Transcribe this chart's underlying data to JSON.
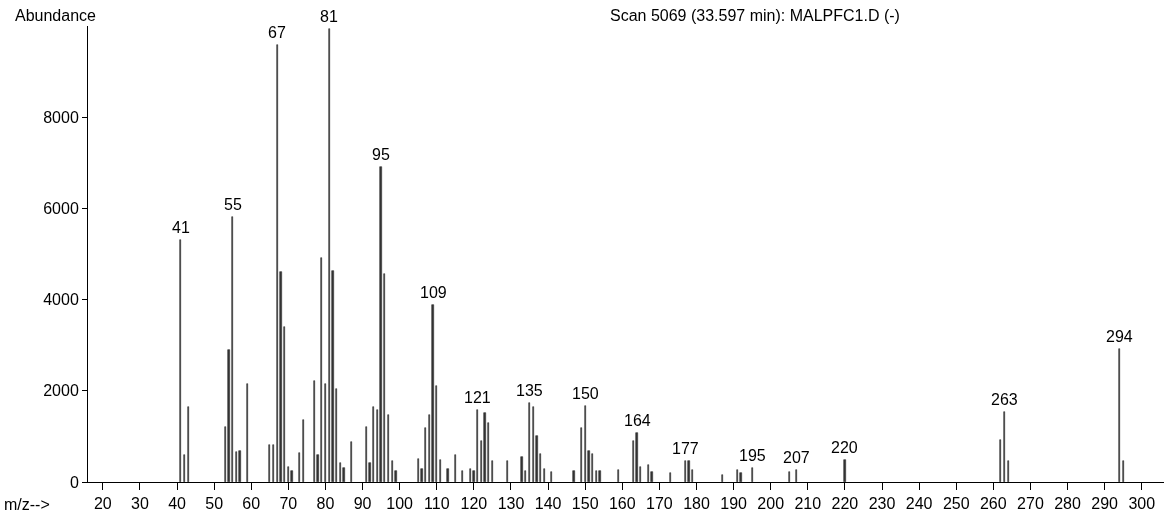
{
  "chart_data": {
    "type": "bar",
    "title": "Scan 5069 (33.597 min): MALPFC1.D (-)",
    "xlabel": "m/z-->",
    "ylabel": "Abundance",
    "x": [
      41,
      42,
      43,
      53,
      54,
      55,
      56,
      57,
      59,
      65,
      66,
      67,
      68,
      69,
      70,
      71,
      73,
      74,
      77,
      78,
      79,
      80,
      81,
      82,
      83,
      84,
      85,
      87,
      91,
      92,
      93,
      94,
      95,
      96,
      97,
      98,
      99,
      105,
      106,
      107,
      108,
      109,
      110,
      111,
      113,
      115,
      117,
      119,
      120,
      121,
      122,
      123,
      124,
      125,
      129,
      133,
      134,
      135,
      136,
      137,
      138,
      139,
      141,
      147,
      149,
      150,
      151,
      152,
      153,
      154,
      159,
      163,
      164,
      165,
      167,
      168,
      173,
      177,
      178,
      179,
      187,
      191,
      192,
      195,
      205,
      207,
      220,
      262,
      263,
      264,
      294,
      295
    ],
    "values": [
      5300,
      600,
      1640,
      1210,
      2890,
      5810,
      650,
      680,
      2160,
      810,
      810,
      9580,
      4600,
      3410,
      330,
      250,
      630,
      1370,
      2210,
      600,
      4910,
      2140,
      9940,
      4620,
      2040,
      410,
      300,
      870,
      1200,
      410,
      1640,
      1580,
      6900,
      4560,
      1470,
      450,
      250,
      510,
      280,
      1190,
      1470,
      3890,
      2100,
      490,
      280,
      600,
      250,
      280,
      250,
      1580,
      890,
      1520,
      1290,
      450,
      470,
      550,
      250,
      1740,
      1640,
      1010,
      610,
      280,
      210,
      250,
      1180,
      1670,
      670,
      620,
      250,
      250,
      270,
      890,
      1080,
      330,
      380,
      210,
      200,
      450,
      470,
      270,
      160,
      270,
      200,
      300,
      220,
      270,
      490,
      920,
      1530,
      470,
      2910,
      470
    ],
    "annotations": [
      {
        "text": "41",
        "x": 41,
        "y": 5300
      },
      {
        "text": "55",
        "x": 55,
        "y": 5810
      },
      {
        "text": "67",
        "x": 67,
        "y": 9580
      },
      {
        "text": "81",
        "x": 81,
        "y": 9940
      },
      {
        "text": "95",
        "x": 95,
        "y": 6900
      },
      {
        "text": "109",
        "x": 109,
        "y": 3890
      },
      {
        "text": "121",
        "x": 121,
        "y": 1580
      },
      {
        "text": "135",
        "x": 135,
        "y": 1740
      },
      {
        "text": "150",
        "x": 150,
        "y": 1670
      },
      {
        "text": "164",
        "x": 164,
        "y": 1080
      },
      {
        "text": "177",
        "x": 177,
        "y": 450
      },
      {
        "text": "195",
        "x": 195,
        "y": 300
      },
      {
        "text": "207",
        "x": 207,
        "y": 270
      },
      {
        "text": "220",
        "x": 220,
        "y": 490
      },
      {
        "text": "263",
        "x": 263,
        "y": 1530
      },
      {
        "text": "294",
        "x": 294,
        "y": 2910
      }
    ],
    "color": "#333333",
    "xlim": [
      16,
      306
    ],
    "xticks": [
      20,
      30,
      40,
      50,
      60,
      70,
      80,
      90,
      100,
      110,
      120,
      130,
      140,
      150,
      160,
      170,
      180,
      190,
      200,
      210,
      220,
      230,
      240,
      250,
      260,
      270,
      280,
      290,
      300
    ],
    "ylim": [
      0,
      10000
    ],
    "yticks": [
      0,
      2000,
      4000,
      6000,
      8000
    ],
    "legend": false
  }
}
